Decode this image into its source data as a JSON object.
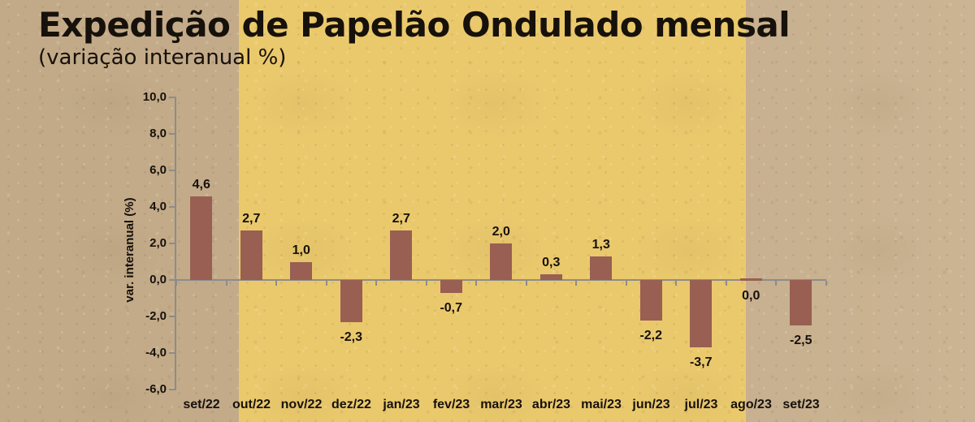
{
  "page": {
    "title": "Expedição de Papelão Ondulado mensal",
    "subtitle": "(variação interanual %)"
  },
  "colors": {
    "background": "#c2aa88",
    "highlight_band": "#eac96d",
    "bar": "#985f52",
    "axis": "#8c8c8c",
    "text": "#17110b"
  },
  "chart_data": {
    "type": "bar",
    "title": "Expedição de Papelão Ondulado mensal",
    "subtitle": "(variação interanual %)",
    "xlabel": "",
    "ylabel": "var. interanual (%)",
    "categories": [
      "set/22",
      "out/22",
      "nov/22",
      "dez/22",
      "jan/23",
      "fev/23",
      "mar/23",
      "abr/23",
      "mai/23",
      "jun/23",
      "jul/23",
      "ago/23",
      "set/23"
    ],
    "values": [
      4.6,
      2.7,
      1.0,
      -2.3,
      2.7,
      -0.7,
      2.0,
      0.3,
      1.3,
      -2.2,
      -3.7,
      0.0,
      -2.5
    ],
    "value_labels": [
      "4,6",
      "2,7",
      "1,0",
      "-2,3",
      "2,7",
      "-0,7",
      "2,0",
      "0,3",
      "1,3",
      "-2,2",
      "-3,7",
      "0,0",
      "-2,5"
    ],
    "ylim": [
      -6,
      10
    ],
    "ytick_step": 2,
    "ytick_values": [
      10,
      8,
      6,
      4,
      2,
      0,
      -2,
      -4,
      -6
    ],
    "ytick_labels": [
      "10,0",
      "8,0",
      "6,0",
      "4,0",
      "2,0",
      "0,0",
      "-2,0",
      "-4,0",
      "-6,0"
    ],
    "grid": false,
    "legend": false,
    "data_labels": true
  }
}
